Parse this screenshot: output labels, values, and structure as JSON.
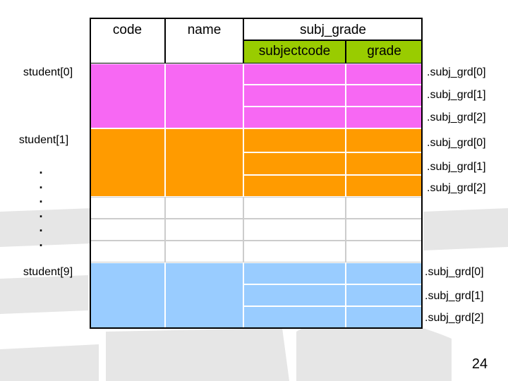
{
  "headers": {
    "code": "code",
    "name": "name",
    "subj_grade": "subj_grade",
    "subjectcode": "subjectcode",
    "grade": "grade"
  },
  "students": [
    {
      "label": "student[0]",
      "color": "#f768f3",
      "rows": [
        ".subj_grd[0]",
        ".subj_grd[1]",
        ".subj_grd[2]"
      ]
    },
    {
      "label": "student[1]",
      "color": "#ff9b00",
      "rows": [
        ".subj_grd[0]",
        ".subj_grd[1]",
        ".subj_grd[2]"
      ]
    },
    {
      "label": "student[9]",
      "color": "#99ccff",
      "rows": [
        ".subj_grd[0]",
        ".subj_grd[1]",
        ".subj_grd[2]"
      ]
    }
  ],
  "ellipsis": [
    ".",
    ".",
    ".",
    ".",
    ".",
    "."
  ],
  "colors": {
    "header_green": "#99cc00",
    "grid_line": "#ffffff",
    "border": "#000000"
  },
  "page_number": "24"
}
